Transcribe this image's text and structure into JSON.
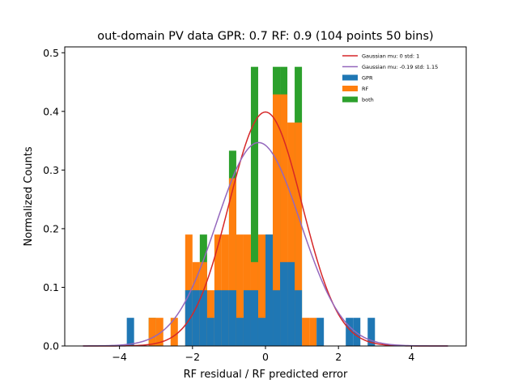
{
  "chart_data": {
    "type": "bar",
    "subtype": "stacked-histogram-with-curves",
    "title": "out-domain PV data GPR: 0.7 RF: 0.9 (104 points 50 bins)",
    "xlabel": "RF residual / RF predicted error",
    "ylabel": "Normalized Counts",
    "xlim": [
      -5.5,
      5.5
    ],
    "ylim": [
      0,
      0.51
    ],
    "xticks": [
      -4,
      -2,
      0,
      2,
      4
    ],
    "xtick_labels": [
      "−4",
      "−2",
      "0",
      "2",
      "4"
    ],
    "yticks": [
      0.0,
      0.1,
      0.2,
      0.3,
      0.4,
      0.5
    ],
    "ytick_labels": [
      "0.0",
      "0.1",
      "0.2",
      "0.3",
      "0.4",
      "0.5"
    ],
    "grid": false,
    "legend_position": "top-right",
    "bin_width": 0.2,
    "x": [
      -3.7,
      -3.1,
      -2.9,
      -2.5,
      -2.1,
      -1.9,
      -1.7,
      -1.5,
      -1.3,
      -1.1,
      -0.9,
      -0.7,
      -0.5,
      -0.3,
      -0.1,
      0.1,
      0.3,
      0.5,
      0.7,
      0.9,
      1.1,
      1.3,
      1.5,
      2.3,
      2.5,
      2.9
    ],
    "series": [
      {
        "name": "GPR",
        "color": "#1f77b4",
        "values": [
          0.048,
          0,
          0,
          0,
          0.095,
          0.095,
          0.095,
          0.048,
          0.095,
          0.095,
          0.095,
          0.048,
          0.095,
          0.095,
          0.048,
          0.19,
          0.095,
          0.143,
          0.143,
          0.095,
          0,
          0,
          0.048,
          0.048,
          0.048,
          0.048
        ]
      },
      {
        "name": "RF",
        "color": "#ff7f0e",
        "values": [
          0,
          0.048,
          0.048,
          0.048,
          0.19,
          0.143,
          0.143,
          0.095,
          0.19,
          0.19,
          0.286,
          0.19,
          0.19,
          0.143,
          0.19,
          0.19,
          0.429,
          0.429,
          0.381,
          0.381,
          0.048,
          0.048,
          0,
          0,
          0,
          0
        ]
      },
      {
        "name": "both",
        "color": "#2ca02c",
        "values": [
          0,
          0.048,
          0,
          0,
          0,
          0,
          0.19,
          0,
          0,
          0,
          0.333,
          0,
          0,
          0.476,
          0,
          0,
          0.476,
          0.476,
          0,
          0.476,
          0,
          0,
          0,
          0,
          0,
          0
        ]
      }
    ],
    "curves": [
      {
        "name": "Gaussian mu: 0 std: 1",
        "mu": 0,
        "std": 1,
        "color": "#d62728",
        "x_range": [
          -5,
          5
        ]
      },
      {
        "name": "Gaussian mu: -0.19 std: 1.15",
        "mu": -0.19,
        "std": 1.15,
        "color": "#9467bd",
        "x_range": [
          -5,
          5
        ]
      }
    ]
  }
}
